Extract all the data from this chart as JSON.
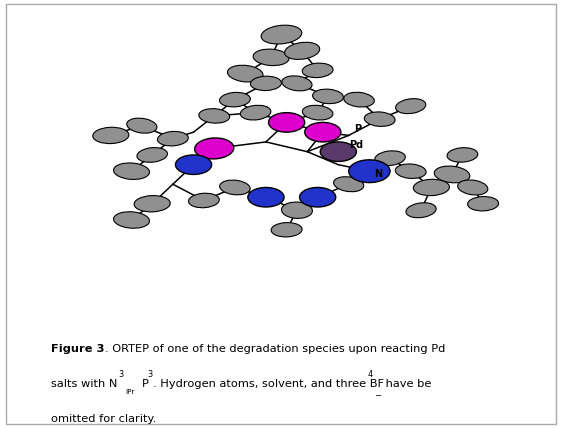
{
  "figure_width": 5.62,
  "figure_height": 4.28,
  "dpi": 100,
  "bg": "#ffffff",
  "border": "#aaaaaa",
  "gray": "#909090",
  "magenta": "#dd00cc",
  "blue": "#2233cc",
  "dark_purple": "#5a3a6a",
  "font_size": 8.2,
  "caption_bold": "Figure 3",
  "caption_rest1": ". ORTEP of one of the degradation species upon reacting Pd",
  "caption_line2a": "salts with N",
  "caption_sub3": "3",
  "caption_supIPr": "iPr",
  "caption_P": "P",
  "caption_subP3": "3",
  "caption_line2b": ". Hydrogen atoms, solvent, and three BF",
  "caption_sub4": "4",
  "caption_minus": "−",
  "caption_line2c": " have be",
  "caption_line3": "omitted for clarity."
}
